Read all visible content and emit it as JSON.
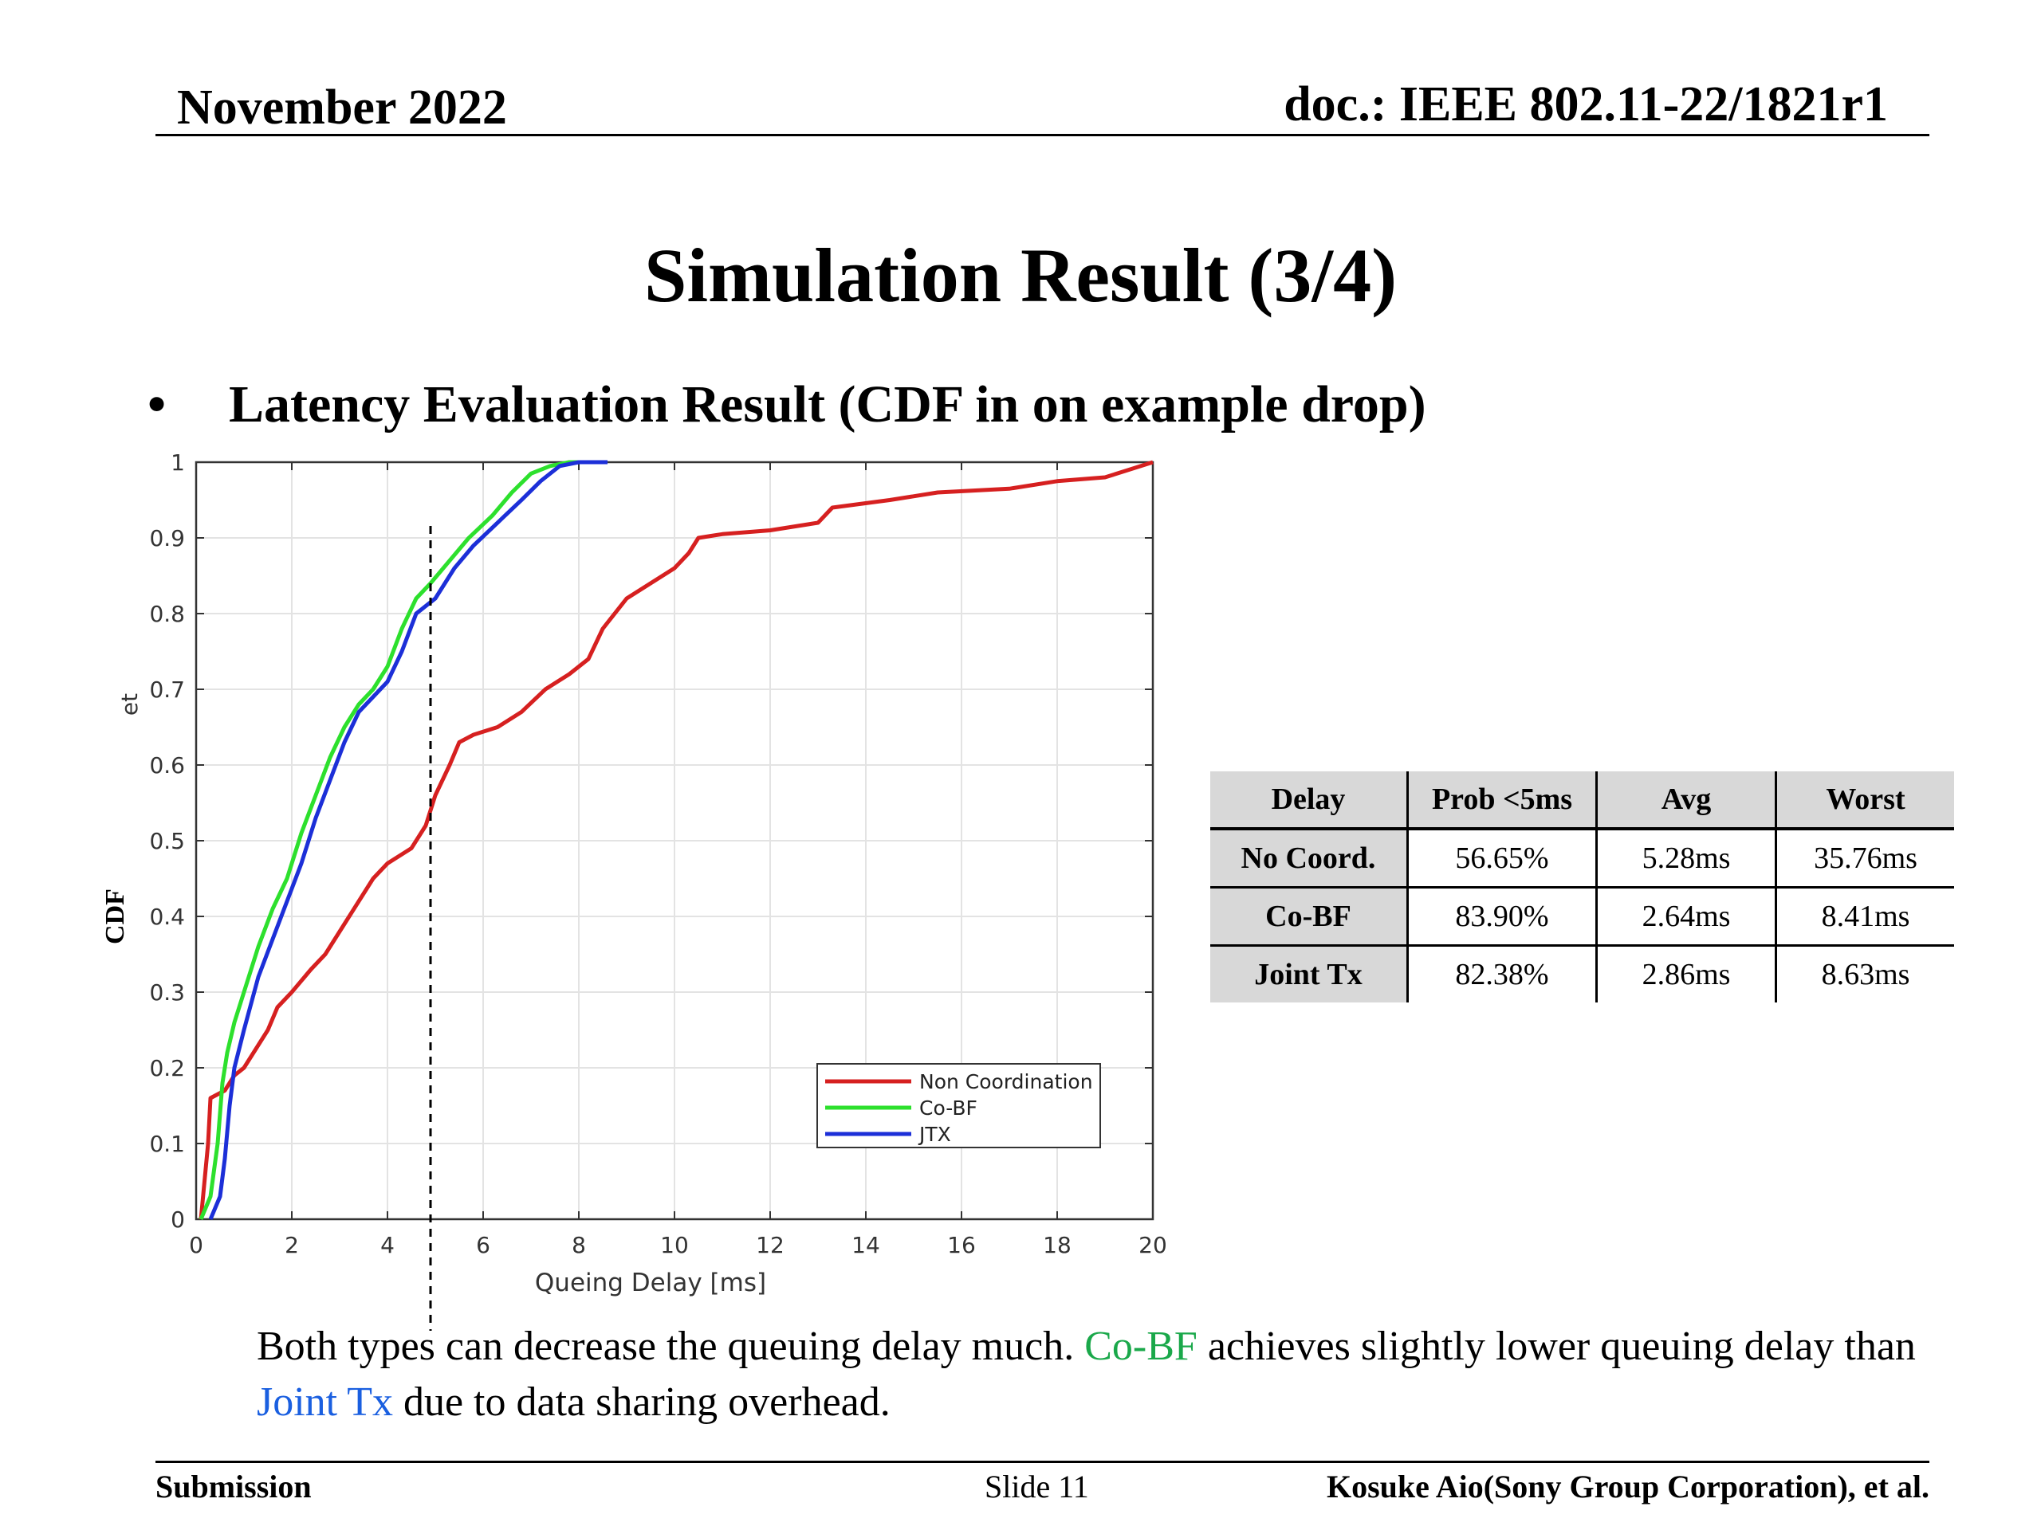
{
  "header": {
    "date": "November 2022",
    "doc": "doc.: IEEE 802.11-22/1821r1"
  },
  "title": "Simulation Result (3/4)",
  "bullet": {
    "symbol": "•",
    "text": "Latency Evaluation Result (CDF in on example drop)"
  },
  "chart_data": {
    "type": "line",
    "title": "",
    "xlabel": "Queing Delay [ms]",
    "ylabel": "CDF",
    "ylabel_fragment": "et",
    "xlim": [
      0,
      20
    ],
    "ylim": [
      0,
      1
    ],
    "xticks": [
      0,
      2,
      4,
      6,
      8,
      10,
      12,
      14,
      16,
      18,
      20
    ],
    "yticks": [
      0,
      0.1,
      0.2,
      0.3,
      0.4,
      0.5,
      0.6,
      0.7,
      0.8,
      0.9,
      1
    ],
    "grid": true,
    "legend": "bottom-right",
    "reference_line_x": 4.9,
    "series": [
      {
        "name": "Non Coordination",
        "color": "#d62020",
        "points": [
          [
            0.1,
            0
          ],
          [
            0.25,
            0.1
          ],
          [
            0.3,
            0.16
          ],
          [
            0.6,
            0.17
          ],
          [
            0.8,
            0.19
          ],
          [
            1.0,
            0.2
          ],
          [
            1.2,
            0.22
          ],
          [
            1.5,
            0.25
          ],
          [
            1.7,
            0.28
          ],
          [
            2.0,
            0.3
          ],
          [
            2.4,
            0.33
          ],
          [
            2.7,
            0.35
          ],
          [
            3.1,
            0.39
          ],
          [
            3.4,
            0.42
          ],
          [
            3.7,
            0.45
          ],
          [
            4.0,
            0.47
          ],
          [
            4.5,
            0.49
          ],
          [
            4.8,
            0.52
          ],
          [
            5.0,
            0.56
          ],
          [
            5.3,
            0.6
          ],
          [
            5.5,
            0.63
          ],
          [
            5.8,
            0.64
          ],
          [
            6.3,
            0.65
          ],
          [
            6.8,
            0.67
          ],
          [
            7.3,
            0.7
          ],
          [
            7.8,
            0.72
          ],
          [
            8.2,
            0.74
          ],
          [
            8.5,
            0.78
          ],
          [
            9.0,
            0.82
          ],
          [
            9.5,
            0.84
          ],
          [
            10.0,
            0.86
          ],
          [
            10.3,
            0.88
          ],
          [
            10.5,
            0.9
          ],
          [
            11.0,
            0.905
          ],
          [
            12.0,
            0.91
          ],
          [
            13.0,
            0.92
          ],
          [
            13.3,
            0.94
          ],
          [
            14.5,
            0.95
          ],
          [
            15.5,
            0.96
          ],
          [
            17.0,
            0.965
          ],
          [
            18.0,
            0.975
          ],
          [
            19.0,
            0.98
          ],
          [
            19.5,
            0.99
          ],
          [
            20.0,
            1.0
          ]
        ]
      },
      {
        "name": "Co-BF",
        "color": "#2de02d",
        "points": [
          [
            0.1,
            0
          ],
          [
            0.3,
            0.03
          ],
          [
            0.45,
            0.1
          ],
          [
            0.55,
            0.18
          ],
          [
            0.65,
            0.22
          ],
          [
            0.8,
            0.26
          ],
          [
            1.0,
            0.3
          ],
          [
            1.3,
            0.36
          ],
          [
            1.6,
            0.41
          ],
          [
            1.9,
            0.45
          ],
          [
            2.2,
            0.51
          ],
          [
            2.5,
            0.56
          ],
          [
            2.8,
            0.61
          ],
          [
            3.1,
            0.65
          ],
          [
            3.4,
            0.68
          ],
          [
            3.7,
            0.7
          ],
          [
            4.0,
            0.73
          ],
          [
            4.3,
            0.78
          ],
          [
            4.6,
            0.82
          ],
          [
            4.9,
            0.84
          ],
          [
            5.3,
            0.87
          ],
          [
            5.7,
            0.9
          ],
          [
            6.2,
            0.93
          ],
          [
            6.6,
            0.96
          ],
          [
            7.0,
            0.985
          ],
          [
            7.4,
            0.995
          ],
          [
            7.8,
            1.0
          ],
          [
            8.2,
            1.0
          ]
        ]
      },
      {
        "name": "JTX",
        "color": "#1c2fd8",
        "points": [
          [
            0.3,
            0
          ],
          [
            0.5,
            0.03
          ],
          [
            0.6,
            0.08
          ],
          [
            0.7,
            0.15
          ],
          [
            0.8,
            0.2
          ],
          [
            1.0,
            0.25
          ],
          [
            1.3,
            0.32
          ],
          [
            1.6,
            0.37
          ],
          [
            1.9,
            0.42
          ],
          [
            2.2,
            0.47
          ],
          [
            2.5,
            0.53
          ],
          [
            2.8,
            0.58
          ],
          [
            3.1,
            0.63
          ],
          [
            3.4,
            0.67
          ],
          [
            3.7,
            0.69
          ],
          [
            4.0,
            0.71
          ],
          [
            4.3,
            0.75
          ],
          [
            4.6,
            0.8
          ],
          [
            5.0,
            0.82
          ],
          [
            5.4,
            0.86
          ],
          [
            5.8,
            0.89
          ],
          [
            6.3,
            0.92
          ],
          [
            6.8,
            0.95
          ],
          [
            7.2,
            0.975
          ],
          [
            7.6,
            0.995
          ],
          [
            8.0,
            1.0
          ],
          [
            8.6,
            1.0
          ]
        ]
      }
    ]
  },
  "table": {
    "headers": [
      "Delay",
      "Prob <5ms",
      "Avg",
      "Worst"
    ],
    "rows": [
      [
        "No Coord.",
        "56.65%",
        "5.28ms",
        "35.76ms"
      ],
      [
        "Co-BF",
        "83.90%",
        "2.64ms",
        "8.41ms"
      ],
      [
        "Joint Tx",
        "82.38%",
        "2.86ms",
        "8.63ms"
      ]
    ]
  },
  "paragraph": {
    "p1": "Both types can decrease the queuing delay much. ",
    "p2": "Co-BF",
    "p3": " achieves slightly lower queuing delay than ",
    "p4": "Joint Tx",
    "p5": " due to data sharing overhead."
  },
  "colors": {
    "cobf_text": "#1aa84a",
    "jointtx_text": "#1a5fe0"
  },
  "footer": {
    "left": "Submission",
    "center": "Slide 11",
    "right": "Kosuke Aio(Sony Group Corporation), et al."
  }
}
